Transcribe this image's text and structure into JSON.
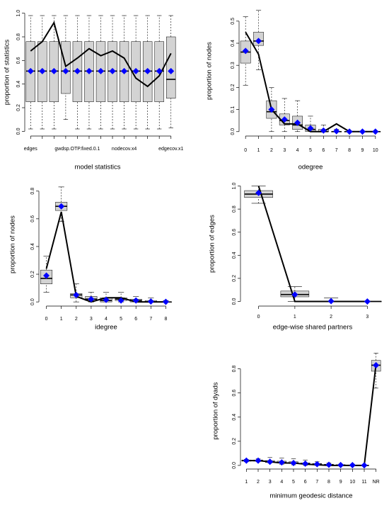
{
  "chart_data": [
    {
      "type": "box",
      "x_label": "model statistics",
      "y_label": "proportion of statistics",
      "categories": [
        "edges",
        null,
        null,
        null,
        "gwdsp.OTP.fixed.0.1",
        null,
        null,
        null,
        "nodecov.x4",
        null,
        null,
        null,
        "edgecov.x1"
      ],
      "ylim": [
        -0.04,
        1.04
      ],
      "yticks": [
        {
          "value": 0,
          "label": "0.0"
        },
        0.2,
        0.4,
        0.6,
        0.8,
        {
          "value": 1,
          "label": "1.0"
        }
      ],
      "boxes": [
        {
          "low": 0.02,
          "q1": 0.25,
          "median": 0.51,
          "q3": 0.76,
          "high": 0.98
        },
        {
          "low": 0.02,
          "q1": 0.25,
          "median": 0.51,
          "q3": 0.76,
          "high": 0.98
        },
        {
          "low": 0.02,
          "q1": 0.25,
          "median": 0.51,
          "q3": 0.76,
          "high": 0.98
        },
        {
          "low": 0.1,
          "q1": 0.32,
          "median": 0.51,
          "q3": 0.76,
          "high": 0.98
        },
        {
          "low": 0.02,
          "q1": 0.25,
          "median": 0.51,
          "q3": 0.76,
          "high": 0.98
        },
        {
          "low": 0.02,
          "q1": 0.25,
          "median": 0.51,
          "q3": 0.76,
          "high": 0.98
        },
        {
          "low": 0.02,
          "q1": 0.25,
          "median": 0.51,
          "q3": 0.76,
          "high": 0.98
        },
        {
          "low": 0.02,
          "q1": 0.25,
          "median": 0.51,
          "q3": 0.76,
          "high": 0.98
        },
        {
          "low": 0.02,
          "q1": 0.25,
          "median": 0.51,
          "q3": 0.76,
          "high": 0.98
        },
        {
          "low": 0.02,
          "q1": 0.25,
          "median": 0.51,
          "q3": 0.76,
          "high": 0.98
        },
        {
          "low": 0.02,
          "q1": 0.25,
          "median": 0.51,
          "q3": 0.76,
          "high": 0.98
        },
        {
          "low": 0.02,
          "q1": 0.25,
          "median": 0.51,
          "q3": 0.76,
          "high": 0.98
        },
        {
          "low": 0.03,
          "q1": 0.28,
          "median": 0.44,
          "q3": 0.8,
          "high": 0.98
        }
      ],
      "observed": {
        "color": "#000000",
        "values": [
          0.68,
          0.76,
          0.92,
          0.55,
          0.62,
          0.7,
          0.64,
          0.68,
          0.62,
          0.45,
          0.38,
          0.47,
          0.66
        ]
      },
      "mean": {
        "color": "#0000ff",
        "values": [
          0.51,
          0.51,
          0.51,
          0.51,
          0.51,
          0.51,
          0.51,
          0.51,
          0.51,
          0.51,
          0.51,
          0.51,
          0.51
        ]
      }
    },
    {
      "type": "box",
      "x_label": "odegree",
      "y_label": "proportion of nodes",
      "categories": [
        "0",
        "1",
        "2",
        "3",
        "4",
        "5",
        "6",
        "7",
        "8",
        "9",
        "10"
      ],
      "ylim": [
        -0.02,
        0.57
      ],
      "yticks": [
        {
          "value": 0,
          "label": "0.0"
        },
        0.1,
        0.2,
        0.3,
        0.4,
        0.5
      ],
      "boxes": [
        {
          "low": 0.21,
          "q1": 0.31,
          "median": 0.36,
          "q3": 0.41,
          "high": 0.52
        },
        {
          "low": 0.28,
          "q1": 0.39,
          "median": 0.41,
          "q3": 0.45,
          "high": 0.55
        },
        {
          "low": 0,
          "q1": 0.06,
          "median": 0.09,
          "q3": 0.14,
          "high": 0.2
        },
        {
          "low": 0,
          "q1": 0.03,
          "median": 0.05,
          "q3": 0.08,
          "high": 0.15
        },
        {
          "low": 0,
          "q1": 0.01,
          "median": 0.03,
          "q3": 0.07,
          "high": 0.14
        },
        {
          "low": 0,
          "q1": 0,
          "median": 0.01,
          "q3": 0.03,
          "high": 0.07
        },
        {
          "low": 0,
          "q1": 0,
          "median": 0,
          "q3": 0.01,
          "high": 0.03
        },
        {
          "low": 0,
          "q1": 0,
          "median": 0,
          "q3": 0,
          "high": 0.01
        },
        {
          "low": 0,
          "q1": 0,
          "median": 0,
          "q3": 0,
          "high": 0
        },
        {
          "low": 0,
          "q1": 0,
          "median": 0,
          "q3": 0,
          "high": 0
        },
        {
          "low": 0,
          "q1": 0,
          "median": 0,
          "q3": 0,
          "high": 0
        }
      ],
      "observed": {
        "color": "#000000",
        "values": [
          0.45,
          0.35,
          0.1,
          0.035,
          0.035,
          0,
          0,
          0.035,
          0,
          0,
          0
        ]
      },
      "mean": {
        "color": "#0000ff",
        "values": [
          0.365,
          0.41,
          0.1,
          0.055,
          0.04,
          0.015,
          0.005,
          0.002,
          0,
          0,
          0
        ]
      }
    },
    {
      "type": "box",
      "x_label": "idegree",
      "y_label": "proportion of nodes",
      "categories": [
        "0",
        "1",
        "2",
        "3",
        "4",
        "5",
        "6",
        "7",
        "8"
      ],
      "ylim": [
        -0.03,
        0.86
      ],
      "yticks": [
        {
          "value": 0,
          "label": "0.0"
        },
        0.2,
        0.4,
        0.6,
        0.8
      ],
      "boxes": [
        {
          "low": 0.07,
          "q1": 0.13,
          "median": 0.17,
          "q3": 0.23,
          "high": 0.33
        },
        {
          "low": 0.58,
          "q1": 0.66,
          "median": 0.69,
          "q3": 0.72,
          "high": 0.83
        },
        {
          "low": 0,
          "q1": 0.03,
          "median": 0.05,
          "q3": 0.06,
          "high": 0.13
        },
        {
          "low": 0,
          "q1": 0.01,
          "median": 0.02,
          "q3": 0.04,
          "high": 0.07
        },
        {
          "low": 0,
          "q1": 0,
          "median": 0.01,
          "q3": 0.03,
          "high": 0.07
        },
        {
          "low": 0,
          "q1": 0.01,
          "median": 0.02,
          "q3": 0.03,
          "high": 0.07
        },
        {
          "low": 0,
          "q1": 0,
          "median": 0.01,
          "q3": 0.02,
          "high": 0.04
        },
        {
          "low": 0,
          "q1": 0,
          "median": 0,
          "q3": 0.01,
          "high": 0.03
        },
        {
          "low": 0,
          "q1": 0,
          "median": 0,
          "q3": 0,
          "high": 0.01
        }
      ],
      "observed": {
        "color": "#000000",
        "values": [
          0.24,
          0.65,
          0.04,
          0,
          0.03,
          0.03,
          0,
          0,
          0
        ]
      },
      "mean": {
        "color": "#0000ff",
        "values": [
          0.19,
          0.69,
          0.05,
          0.02,
          0.015,
          0.01,
          0.01,
          0.003,
          0.001
        ]
      }
    },
    {
      "type": "box",
      "x_label": "edge-wise shared partners",
      "y_label": "proportion of edges",
      "categories": [
        "0",
        "1",
        "2",
        "3"
      ],
      "ylim": [
        -0.04,
        1.04
      ],
      "yticks": [
        {
          "value": 0,
          "label": "0.0"
        },
        0.2,
        0.4,
        0.6,
        0.8,
        {
          "value": 1,
          "label": "1.0"
        }
      ],
      "boxes": [
        {
          "low": 0.85,
          "q1": 0.9,
          "median": 0.93,
          "q3": 0.96,
          "high": 1
        },
        {
          "low": 0,
          "q1": 0.04,
          "median": 0.06,
          "q3": 0.09,
          "high": 0.13
        },
        {
          "low": 0,
          "q1": 0,
          "median": 0,
          "q3": 0,
          "high": 0.03
        },
        {
          "low": 0,
          "q1": 0,
          "median": 0,
          "q3": 0,
          "high": 0
        }
      ],
      "observed": {
        "color": "#000000",
        "values": [
          1,
          0,
          0,
          0
        ]
      },
      "mean": {
        "color": "#0000ff",
        "values": [
          0.94,
          0.06,
          0.003,
          0
        ]
      }
    },
    {
      "type": "box",
      "x_label": "minimum geodesic distance",
      "y_label": "proportion of dyads",
      "categories": [
        "1",
        "2",
        "3",
        "4",
        "5",
        "6",
        "7",
        "8",
        "9",
        "10",
        "11",
        "NR"
      ],
      "ylim": [
        -0.03,
        0.95
      ],
      "yticks": [
        {
          "value": 0,
          "label": "0.0"
        },
        0.2,
        0.4,
        0.6,
        0.8
      ],
      "boxes": [
        {
          "low": 0.03,
          "q1": 0.035,
          "median": 0.04,
          "q3": 0.045,
          "high": 0.05
        },
        {
          "low": 0.03,
          "q1": 0.035,
          "median": 0.04,
          "q3": 0.045,
          "high": 0.055
        },
        {
          "low": 0.02,
          "q1": 0.025,
          "median": 0.03,
          "q3": 0.04,
          "high": 0.065
        },
        {
          "low": 0.01,
          "q1": 0.02,
          "median": 0.025,
          "q3": 0.035,
          "high": 0.06
        },
        {
          "low": 0.005,
          "q1": 0.015,
          "median": 0.02,
          "q3": 0.03,
          "high": 0.055
        },
        {
          "low": 0,
          "q1": 0.01,
          "median": 0.015,
          "q3": 0.02,
          "high": 0.045
        },
        {
          "low": 0,
          "q1": 0.005,
          "median": 0.01,
          "q3": 0.015,
          "high": 0.03
        },
        {
          "low": 0,
          "q1": 0,
          "median": 0.005,
          "q3": 0.01,
          "high": 0.02
        },
        {
          "low": 0,
          "q1": 0,
          "median": 0.003,
          "q3": 0.005,
          "high": 0.01
        },
        {
          "low": 0,
          "q1": 0,
          "median": 0,
          "q3": 0.003,
          "high": 0.01
        },
        {
          "low": 0,
          "q1": 0,
          "median": 0,
          "q3": 0,
          "high": 0.005
        },
        {
          "low": 0.64,
          "q1": 0.78,
          "median": 0.83,
          "q3": 0.87,
          "high": 0.93
        }
      ],
      "observed": {
        "color": "#000000",
        "values": [
          0.04,
          0.04,
          0.03,
          0.02,
          0.02,
          0.01,
          0.005,
          0,
          0,
          0,
          0,
          0.84
        ]
      },
      "mean": {
        "color": "#0000ff",
        "values": [
          0.04,
          0.04,
          0.03,
          0.025,
          0.02,
          0.015,
          0.01,
          0.005,
          0.003,
          0.002,
          0.001,
          0.83
        ]
      }
    }
  ]
}
